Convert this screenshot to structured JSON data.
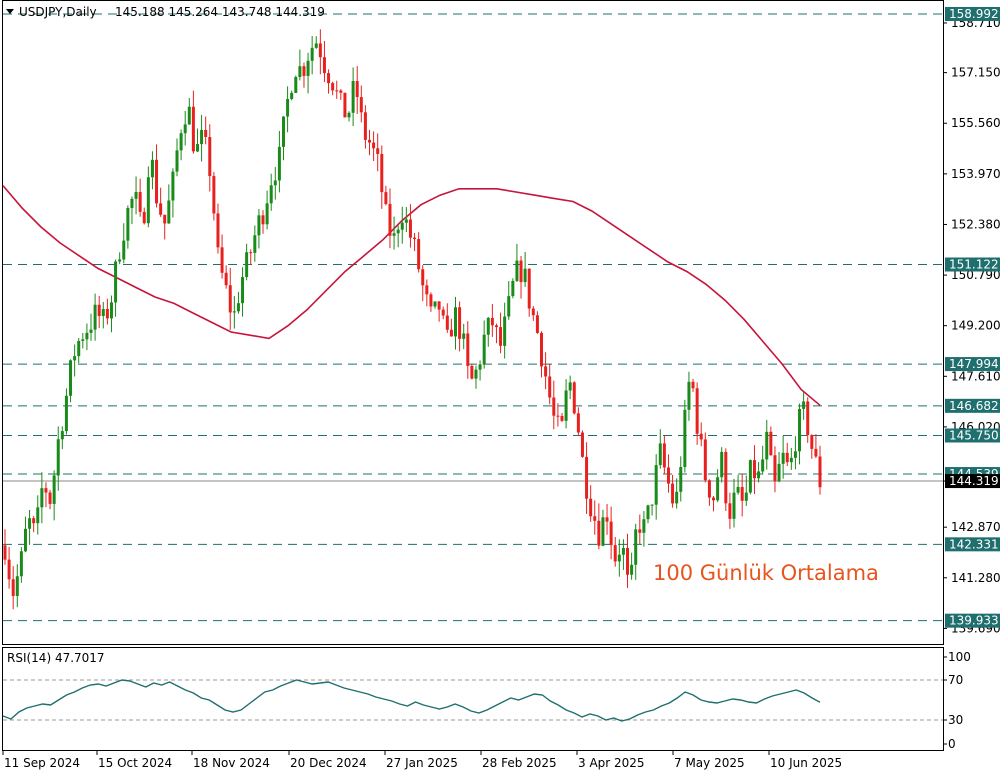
{
  "header": {
    "symbol": "USDJPY,Daily",
    "ohlc": "145.188 145.264 143.748 144.319"
  },
  "annotation": {
    "text": "100 Günlük Ortalama",
    "color": "#e8541e"
  },
  "colors": {
    "bull": "#1a8a1a",
    "bear": "#e8211f",
    "ma": "#c8143c",
    "level_line": "#1f6f6f",
    "level_box_bg": "#1f6f6f",
    "level_box_text": "#ffffff",
    "rsi_line": "#1f6f6f",
    "grid_text": "#000000"
  },
  "chart_data": [
    {
      "type": "candlestick",
      "title": "USDJPY,Daily",
      "ylim": [
        139.2,
        159.4
      ],
      "y_ticks": [
        158.71,
        157.15,
        155.56,
        153.97,
        152.38,
        150.79,
        149.2,
        147.61,
        146.02,
        144.319,
        142.87,
        141.28,
        139.69
      ],
      "x_tick_labels": [
        "11 Sep 2024",
        "15 Oct 2024",
        "18 Nov 2024",
        "20 Dec 2024",
        "27 Jan 2025",
        "28 Feb 2025",
        "3 Apr 2025",
        "7 May 2025",
        "10 Jun 2025"
      ],
      "current_price": 144.319,
      "horizontal_levels": [
        158.992,
        151.122,
        147.994,
        146.682,
        145.75,
        144.539,
        142.331,
        139.933
      ],
      "series": [
        {
          "name": "USDJPY",
          "close_path": [
            142.3,
            140.8,
            141.6,
            143.1,
            142.6,
            144.3,
            143.7,
            145.6,
            146.9,
            148.3,
            148.9,
            149.2,
            149.6,
            149.3,
            150.1,
            151.6,
            152.7,
            153.3,
            152.1,
            154.8,
            153.1,
            152.4,
            153.6,
            155.4,
            156.2,
            154.6,
            155.1,
            154.0,
            151.2,
            150.3,
            149.4,
            150.6,
            151.3,
            152.2,
            152.9,
            153.9,
            154.4,
            156.1,
            157.4,
            157.2,
            157.9,
            158.2,
            157.4,
            156.9,
            156.1,
            155.8,
            156.8,
            155.3,
            154.9,
            154.2,
            152.6,
            151.8,
            152.9,
            152.2,
            151.4,
            150.2,
            149.4,
            149.8,
            148.6,
            149.6,
            148.9,
            147.3,
            147.8,
            148.9,
            149.3,
            148.5,
            149.6,
            150.8,
            151.0,
            149.8,
            148.9,
            147.6,
            146.3,
            145.7,
            147.6,
            146.5,
            144.6,
            143.5,
            142.7,
            143.4,
            141.9,
            142.4,
            140.6,
            143.1,
            142.8,
            143.9,
            145.2,
            144.3,
            143.4,
            145.6,
            147.8,
            145.9,
            144.4,
            143.8,
            145.1,
            143.3,
            143.9,
            143.5,
            144.7,
            144.4,
            145.6,
            144.0,
            145.1,
            144.6,
            146.0,
            146.5,
            145.3,
            144.3
          ]
        },
        {
          "name": "100 Günlük Ortalama",
          "values": [
            153.6,
            152.9,
            152.3,
            151.8,
            151.4,
            151.0,
            150.7,
            150.4,
            150.1,
            149.9,
            149.6,
            149.3,
            149.0,
            148.9,
            148.8,
            149.2,
            149.7,
            150.3,
            150.9,
            151.4,
            151.9,
            152.5,
            153.0,
            153.3,
            153.5,
            153.5,
            153.5,
            153.4,
            153.3,
            153.2,
            153.1,
            152.8,
            152.4,
            152.0,
            151.6,
            151.2,
            150.9,
            150.5,
            150.0,
            149.4,
            148.7,
            148.0,
            147.2,
            146.7
          ]
        }
      ]
    },
    {
      "type": "line",
      "title": "RSI(14) 47.7017",
      "ylim": [
        0,
        100
      ],
      "y_ticks": [
        100,
        70,
        30,
        0
      ],
      "levels": [
        70,
        30
      ],
      "series": [
        {
          "name": "RSI(14)",
          "values": [
            34,
            31,
            38,
            42,
            44,
            46,
            45,
            50,
            55,
            58,
            62,
            65,
            66,
            64,
            67,
            70,
            69,
            66,
            63,
            67,
            65,
            68,
            64,
            60,
            57,
            52,
            50,
            45,
            40,
            38,
            40,
            46,
            52,
            58,
            60,
            64,
            67,
            70,
            68,
            66,
            67,
            68,
            65,
            62,
            60,
            58,
            56,
            53,
            51,
            49,
            46,
            44,
            48,
            45,
            43,
            41,
            43,
            46,
            43,
            39,
            37,
            40,
            44,
            48,
            52,
            50,
            53,
            56,
            55,
            49,
            45,
            40,
            37,
            33,
            36,
            34,
            30,
            32,
            29,
            31,
            35,
            38,
            40,
            44,
            47,
            52,
            58,
            55,
            50,
            48,
            47,
            49,
            51,
            50,
            48,
            47,
            51,
            54,
            56,
            58,
            60,
            57,
            52,
            47.7
          ]
        }
      ]
    }
  ]
}
